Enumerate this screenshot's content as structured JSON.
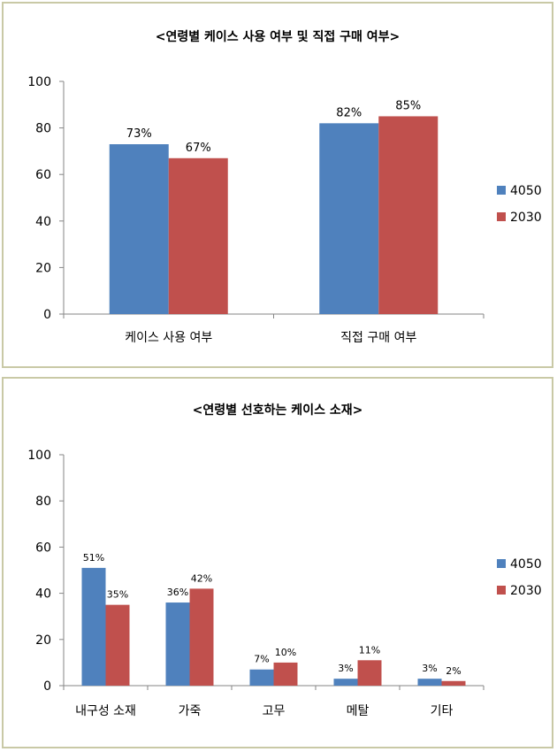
{
  "chart_data": [
    {
      "type": "bar",
      "title": "<연령별 케이스 사용 여부 및 직접 구매 여부>",
      "xlabel": "",
      "ylabel": "",
      "ylim": [
        0,
        100
      ],
      "yticks": [
        0,
        20,
        40,
        60,
        80,
        100
      ],
      "grid": false,
      "legend": "right",
      "categories": [
        "케이스 사용 여부",
        "직접 구매 여부"
      ],
      "series": [
        {
          "name": "4050",
          "values": [
            73,
            82
          ],
          "labels": [
            "73%",
            "82%"
          ],
          "color": "#4f81bd"
        },
        {
          "name": "2030",
          "values": [
            67,
            85
          ],
          "labels": [
            "67%",
            "85%"
          ],
          "color": "#c0504d"
        }
      ]
    },
    {
      "type": "bar",
      "title": "<연령별 선호하는 케이스 소재>",
      "xlabel": "",
      "ylabel": "",
      "ylim": [
        0,
        100
      ],
      "yticks": [
        0,
        20,
        40,
        60,
        80,
        100
      ],
      "grid": false,
      "legend": "right",
      "categories": [
        "내구성 소재",
        "가죽",
        "고무",
        "메탈",
        "기타"
      ],
      "series": [
        {
          "name": "4050",
          "values": [
            51,
            36,
            7,
            3,
            3
          ],
          "labels": [
            "51%",
            "36%",
            "7%",
            "3%",
            "3%"
          ],
          "color": "#4f81bd"
        },
        {
          "name": "2030",
          "values": [
            35,
            42,
            10,
            11,
            2
          ],
          "labels": [
            "35%",
            "42%",
            "10%",
            "11%",
            "2%"
          ],
          "color": "#c0504d"
        }
      ]
    }
  ]
}
